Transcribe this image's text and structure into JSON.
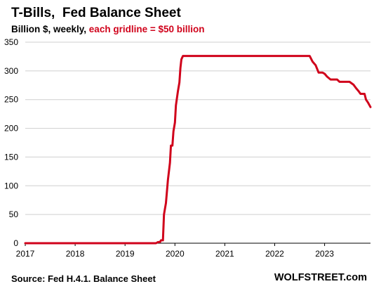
{
  "chart_data": {
    "type": "line",
    "title": "T-Bills,  Fed Balance Sheet",
    "subtitle_prefix": "Billion $, weekly, ",
    "subtitle_highlight": "each gridline = $50 billion",
    "source": "Source: Fed H.4.1. Balance Sheet",
    "brand": "WOLFSTREET.com",
    "xlim": [
      2017,
      2023.92
    ],
    "ylim": [
      0,
      350
    ],
    "x_ticks": [
      2017,
      2018,
      2019,
      2020,
      2021,
      2022,
      2023
    ],
    "y_ticks": [
      0,
      50,
      100,
      150,
      200,
      250,
      300,
      350
    ],
    "grid": true,
    "series": [
      {
        "color": "#d0021b",
        "points": [
          [
            2017.0,
            0
          ],
          [
            2019.62,
            0
          ],
          [
            2019.66,
            2
          ],
          [
            2019.7,
            2
          ],
          [
            2019.72,
            5
          ],
          [
            2019.76,
            5
          ],
          [
            2019.78,
            50
          ],
          [
            2019.82,
            70
          ],
          [
            2019.86,
            110
          ],
          [
            2019.9,
            140
          ],
          [
            2019.92,
            170
          ],
          [
            2019.95,
            170
          ],
          [
            2019.97,
            195
          ],
          [
            2020.0,
            210
          ],
          [
            2020.02,
            240
          ],
          [
            2020.06,
            265
          ],
          [
            2020.09,
            280
          ],
          [
            2020.11,
            305
          ],
          [
            2020.13,
            320
          ],
          [
            2020.16,
            326
          ],
          [
            2020.19,
            326
          ],
          [
            2022.7,
            326
          ],
          [
            2022.76,
            316
          ],
          [
            2022.82,
            310
          ],
          [
            2022.88,
            297
          ],
          [
            2022.96,
            297
          ],
          [
            2023.0,
            295
          ],
          [
            2023.05,
            290
          ],
          [
            2023.12,
            285
          ],
          [
            2023.25,
            285
          ],
          [
            2023.3,
            281
          ],
          [
            2023.5,
            281
          ],
          [
            2023.58,
            276
          ],
          [
            2023.63,
            270
          ],
          [
            2023.68,
            265
          ],
          [
            2023.72,
            260
          ],
          [
            2023.8,
            260
          ],
          [
            2023.83,
            250
          ],
          [
            2023.87,
            245
          ],
          [
            2023.92,
            237
          ]
        ]
      }
    ]
  }
}
